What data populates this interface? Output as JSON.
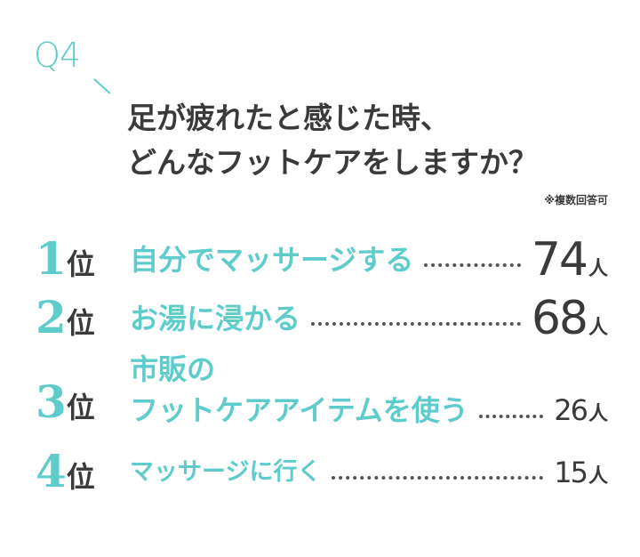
{
  "question_number": "Q4",
  "title_lines": [
    "足が疲れたと感じた時、",
    "どんなフットケアをしますか？"
  ],
  "note": "※複数回答可",
  "accent_color": "#5fcccc",
  "text_color": "#3a3a3a",
  "rank_suffix": "位",
  "count_unit": "人",
  "rankings": [
    {
      "rank": "1",
      "label_lines": [
        "自分でマッサージする"
      ],
      "count": "74"
    },
    {
      "rank": "2",
      "label_lines": [
        "お湯に浸かる"
      ],
      "count": "68"
    },
    {
      "rank": "3",
      "label_lines": [
        "市販の",
        "フットケアアイテムを使う"
      ],
      "count": "26"
    },
    {
      "rank": "4",
      "label_lines": [
        "マッサージに行く"
      ],
      "count": "15"
    }
  ]
}
